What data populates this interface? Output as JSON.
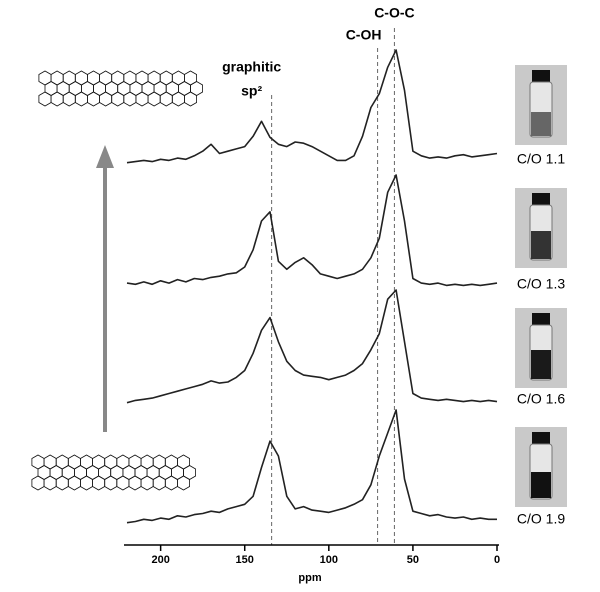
{
  "chart_data": {
    "type": "line",
    "xlabel": "ppm",
    "xlim": [
      220,
      0
    ],
    "xticks": [
      200,
      150,
      100,
      50,
      0
    ],
    "ylim": [
      0,
      100
    ],
    "x": [
      220,
      215,
      210,
      205,
      200,
      195,
      190,
      185,
      180,
      175,
      170,
      165,
      160,
      155,
      150,
      145,
      140,
      135,
      130,
      125,
      120,
      115,
      110,
      105,
      100,
      95,
      90,
      85,
      80,
      75,
      70,
      65,
      60,
      55,
      50,
      45,
      40,
      35,
      30,
      25,
      20,
      15,
      10,
      5,
      0
    ],
    "series": [
      {
        "name": "C/O 1.1",
        "color": "#222222",
        "values": [
          2,
          3,
          4,
          3,
          5,
          4,
          6,
          5,
          8,
          12,
          18,
          10,
          12,
          14,
          16,
          25,
          38,
          24,
          18,
          16,
          20,
          19,
          16,
          12,
          8,
          4,
          4,
          8,
          25,
          50,
          62,
          85,
          100,
          65,
          12,
          8,
          6,
          7,
          6,
          8,
          9,
          7,
          8,
          9,
          10
        ]
      },
      {
        "name": "C/O 1.3",
        "color": "#222222",
        "values": [
          6,
          5,
          7,
          5,
          8,
          6,
          9,
          7,
          10,
          9,
          11,
          12,
          14,
          15,
          20,
          35,
          60,
          68,
          25,
          18,
          24,
          28,
          22,
          14,
          12,
          10,
          12,
          14,
          18,
          28,
          45,
          85,
          100,
          60,
          10,
          6,
          5,
          6,
          4,
          5,
          4,
          5,
          4,
          5,
          6
        ]
      },
      {
        "name": "C/O 1.6",
        "color": "#222222",
        "values": [
          2,
          4,
          5,
          6,
          8,
          10,
          12,
          14,
          16,
          18,
          21,
          19,
          20,
          24,
          30,
          45,
          65,
          76,
          55,
          38,
          30,
          26,
          25,
          24,
          22,
          24,
          26,
          30,
          36,
          48,
          62,
          92,
          100,
          55,
          10,
          6,
          5,
          4,
          5,
          4,
          3,
          4,
          3,
          4,
          3
        ]
      },
      {
        "name": "C/O 1.9",
        "color": "#222222",
        "values": [
          2,
          3,
          5,
          4,
          6,
          5,
          8,
          7,
          9,
          10,
          12,
          11,
          14,
          16,
          18,
          25,
          50,
          73,
          60,
          25,
          14,
          16,
          13,
          12,
          11,
          13,
          15,
          18,
          22,
          35,
          60,
          80,
          100,
          40,
          12,
          10,
          8,
          9,
          7,
          6,
          7,
          5,
          6,
          5,
          5
        ]
      }
    ],
    "annotations": [
      {
        "x": 134,
        "lines": [
          "graphitic",
          "sp²"
        ]
      },
      {
        "x": 71,
        "lines": [
          "C-OH"
        ]
      },
      {
        "x": 61,
        "lines": [
          "C-O-C"
        ]
      }
    ]
  }
}
